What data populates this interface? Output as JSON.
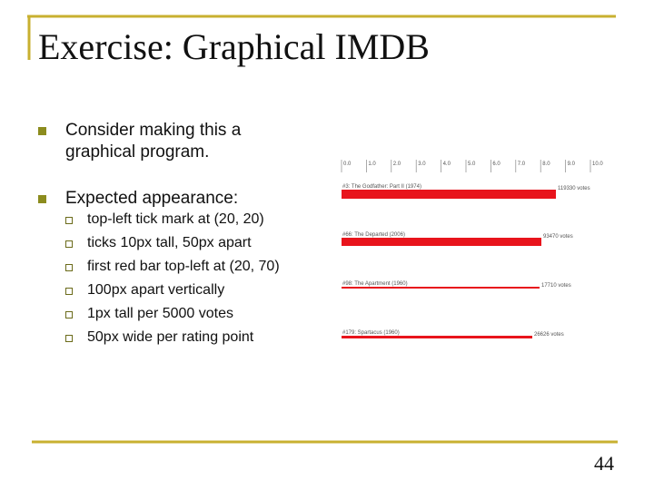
{
  "header": {
    "title": "Exercise: Graphical IMDB"
  },
  "bullets": [
    {
      "text": "Consider making this a graphical program."
    },
    {
      "text": "Expected appearance:",
      "subitems": [
        "top-left tick mark at (20, 20)",
        "ticks 10px tall, 50px apart",
        "first red bar top-left at (20, 70)",
        "100px apart vertically",
        "1px tall per 5000 votes",
        "50px wide per rating point"
      ]
    }
  ],
  "figure": {
    "ticks": [
      "0.0",
      "1.0",
      "2.0",
      "3.0",
      "4.0",
      "5.0",
      "6.0",
      "7.0",
      "8.0",
      "9.0",
      "10.0"
    ],
    "bars": [
      {
        "label": "#3: The Godfather: Part II (1974)",
        "votes": "119330 votes"
      },
      {
        "label": "#66: The Departed (2006)",
        "votes": "93470 votes"
      },
      {
        "label": "#98: The Apartment (1960)",
        "votes": "17710 votes"
      },
      {
        "label": "#179: Spartacus (1960)",
        "votes": "26626 votes"
      }
    ]
  },
  "page_number": "44"
}
